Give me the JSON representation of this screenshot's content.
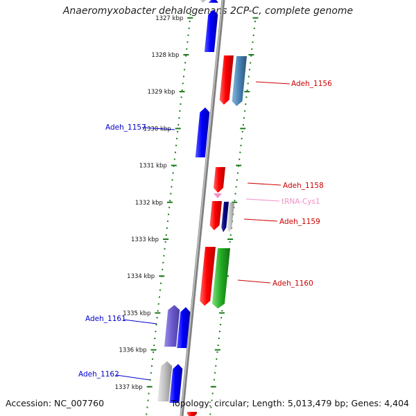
{
  "title": "Anaeromyxobacter dehalogenans 2CP-C, complete genome",
  "accession": "Accession: NC_007760",
  "summary": "Topology: circular; Length: 5,013,479 bp; Genes: 4,404",
  "colors": {
    "axis": "#808080",
    "ticks": "#1a7a1a",
    "forward_label": "#0000cc",
    "reverse_label": "#cc0000",
    "trna_label": "#f090c8"
  },
  "kbp_ticks": [
    {
      "label": "1327 kbp",
      "value": 1327
    },
    {
      "label": "1328 kbp",
      "value": 1328
    },
    {
      "label": "1329 kbp",
      "value": 1329
    },
    {
      "label": "1330 kbp",
      "value": 1330
    },
    {
      "label": "1331 kbp",
      "value": 1331
    },
    {
      "label": "1332 kbp",
      "value": 1332
    },
    {
      "label": "1333 kbp",
      "value": 1333
    },
    {
      "label": "1334 kbp",
      "value": 1334
    },
    {
      "label": "1335 kbp",
      "value": 1335
    },
    {
      "label": "1336 kbp",
      "value": 1336
    },
    {
      "label": "1337 kbp",
      "value": 1337
    }
  ],
  "gene_labels": [
    {
      "text": "Adeh_1156",
      "strand": "reverse"
    },
    {
      "text": "Adeh_1157",
      "strand": "forward"
    },
    {
      "text": "Adeh_1158",
      "strand": "reverse"
    },
    {
      "text": "tRNA-Cys1",
      "strand": "trna"
    },
    {
      "text": "Adeh_1159",
      "strand": "reverse"
    },
    {
      "text": "Adeh_1160",
      "strand": "reverse"
    },
    {
      "text": "Adeh_1161",
      "strand": "forward"
    },
    {
      "text": "Adeh_1162",
      "strand": "forward"
    }
  ]
}
